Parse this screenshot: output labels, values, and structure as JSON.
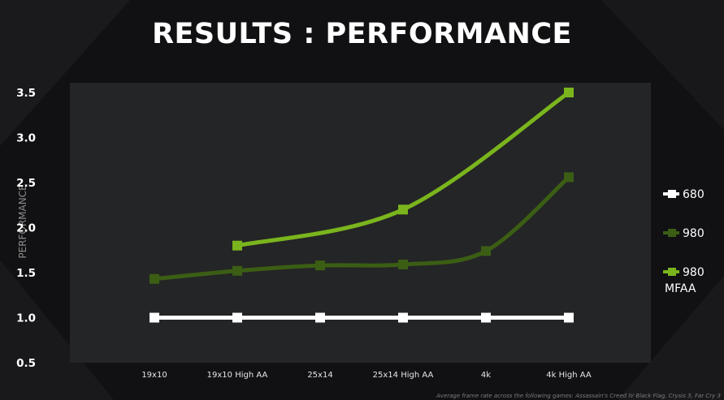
{
  "title": "RESULTS : PERFORMANCE",
  "footnote": "Average frame rate across the following games: Assassain's Creed IV Black Flag, Crysis 3, Far Cry 3",
  "chart_data": {
    "type": "line",
    "title": "RESULTS : PERFORMANCE",
    "xlabel": "",
    "ylabel": "PERFORMANCE",
    "categories": [
      "19x10",
      "19x10 High AA",
      "25x14",
      "25x14 High AA",
      "4k",
      "4k High AA"
    ],
    "ylim": [
      0.5,
      3.5
    ],
    "yticks": [
      "0.5",
      "1.0",
      "1.5",
      "2.0",
      "2.5",
      "3.0",
      "3.5"
    ],
    "grid": false,
    "legend_position": "right",
    "series": [
      {
        "name": "680",
        "color": "#ffffff",
        "values": [
          1.0,
          1.0,
          1.0,
          1.0,
          1.0,
          1.0
        ]
      },
      {
        "name": "980",
        "color": "#3b5e14",
        "values": [
          1.43,
          1.52,
          1.58,
          1.59,
          1.74,
          2.56
        ]
      },
      {
        "name": "980 MFAA",
        "legend_lines": [
          "980",
          "MFAA"
        ],
        "color": "#7ab51d",
        "values": [
          null,
          1.8,
          null,
          2.2,
          null,
          3.5
        ]
      }
    ]
  }
}
